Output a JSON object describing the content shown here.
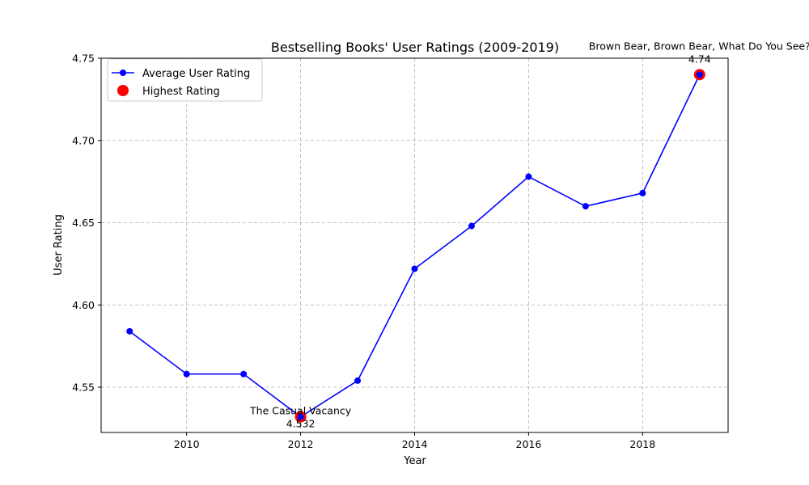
{
  "chart_data": {
    "type": "line",
    "title": "Bestselling Books' User Ratings (2009-2019)",
    "xlabel": "Year",
    "ylabel": "User Rating",
    "xlim": [
      2008.5,
      2019.5
    ],
    "ylim": [
      4.5225,
      4.75
    ],
    "x_ticks": [
      2010,
      2012,
      2014,
      2016,
      2018
    ],
    "y_ticks": [
      4.55,
      4.6,
      4.65,
      4.7,
      4.75
    ],
    "y_tick_labels": [
      "4.55",
      "4.60",
      "4.65",
      "4.70",
      "4.75"
    ],
    "grid": true,
    "legend_position": "top-left",
    "series": [
      {
        "name": "Average User Rating",
        "color": "#0000ff",
        "x": [
          2009,
          2010,
          2011,
          2012,
          2013,
          2014,
          2015,
          2016,
          2017,
          2018,
          2019
        ],
        "values": [
          4.584,
          4.558,
          4.558,
          4.532,
          4.554,
          4.622,
          4.648,
          4.678,
          4.66,
          4.668,
          4.74
        ]
      }
    ],
    "highlights": {
      "name": "Highest Rating",
      "color": "#ff0000",
      "points": [
        {
          "x": 2012,
          "y": 4.532,
          "book": "The Casual Vacancy",
          "value_label": "4.532"
        },
        {
          "x": 2019,
          "y": 4.74,
          "book": "Brown Bear, Brown Bear, What Do You See?",
          "value_label": "4.74"
        }
      ]
    }
  }
}
